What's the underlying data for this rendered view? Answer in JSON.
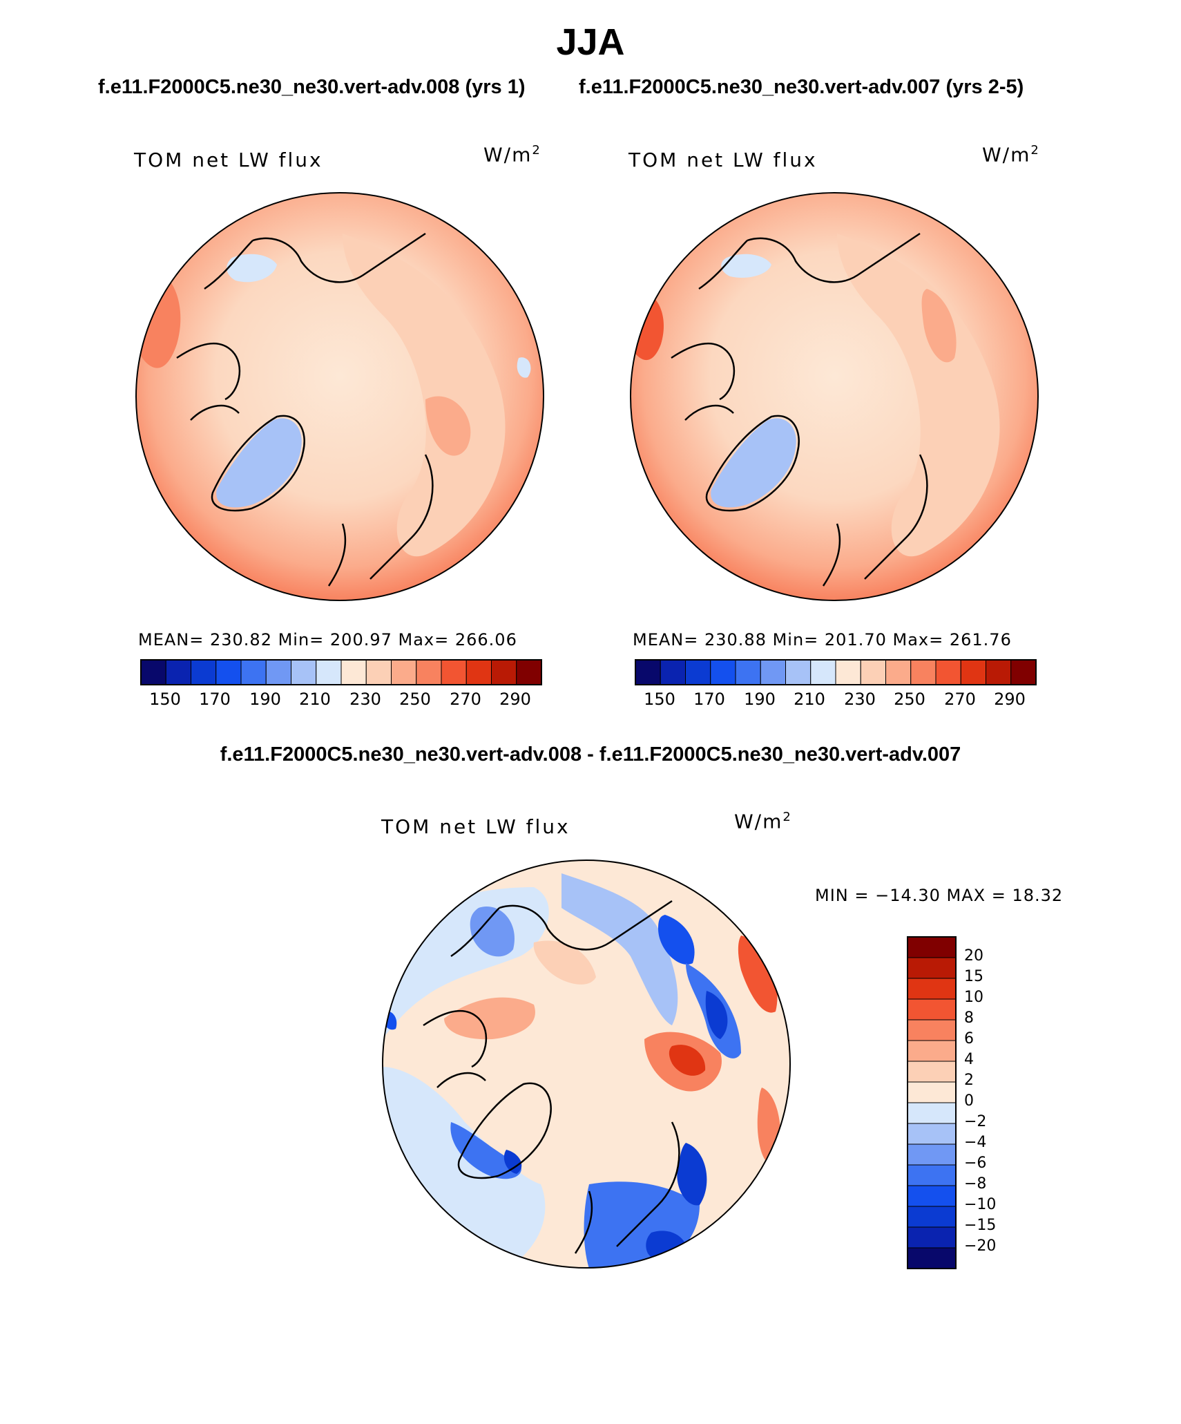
{
  "season": "JJA",
  "case_titles": [
    "f.e11.F2000C5.ne30_ne30.vert-adv.008 (yrs 1)",
    "f.e11.F2000C5.ne30_ne30.vert-adv.007 (yrs 2-5)"
  ],
  "diff_title": "f.e11.F2000C5.ne30_ne30.vert-adv.008 - f.e11.F2000C5.ne30_ne30.vert-adv.007",
  "panels": [
    {
      "variable": "TOM net LW flux",
      "units": "W/m",
      "units_exp": "2",
      "stats": "MEAN= 230.82   Min= 200.97   Max= 266.06"
    },
    {
      "variable": "TOM net LW flux",
      "units": "W/m",
      "units_exp": "2",
      "stats": "MEAN= 230.88   Min= 201.70   Max= 261.76"
    }
  ],
  "diff_panel": {
    "variable": "TOM net LW flux",
    "units": "W/m",
    "units_exp": "2",
    "stats": "MIN = −14.30 MAX =   18.32"
  },
  "colorbar": {
    "ticks": [
      "150",
      "170",
      "190",
      "210",
      "230",
      "250",
      "270",
      "290"
    ],
    "colors": [
      "#08086b",
      "#0a23b0",
      "#0b3bd2",
      "#1450ee",
      "#3d73f2",
      "#7098f4",
      "#a7c2f7",
      "#d6e7fb",
      "#fde8d6",
      "#fcd0b6",
      "#fbab8b",
      "#f8825f",
      "#f25532",
      "#e03513",
      "#b91a05",
      "#800000"
    ]
  },
  "diff_colorbar": {
    "labels": [
      "20",
      "15",
      "10",
      "8",
      "6",
      "4",
      "2",
      "0",
      "−2",
      "−4",
      "−6",
      "−8",
      "−10",
      "−15",
      "−20"
    ],
    "colors": [
      "#800000",
      "#b91a05",
      "#e03513",
      "#f25532",
      "#f8825f",
      "#fbab8b",
      "#fcd0b6",
      "#fde8d6",
      "#d6e7fb",
      "#a7c2f7",
      "#7098f4",
      "#3d73f2",
      "#1450ee",
      "#0b3bd2",
      "#0a23b0",
      "#08086b"
    ]
  }
}
